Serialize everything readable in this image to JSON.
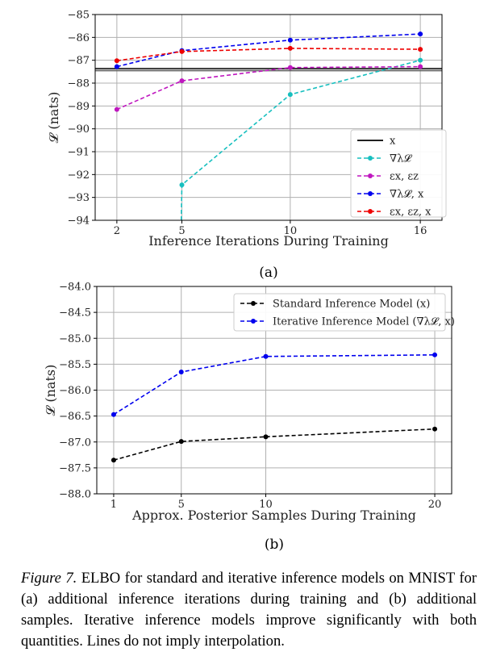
{
  "chart_data": [
    {
      "panel": "(a)",
      "type": "line",
      "xlabel": "Inference Iterations During Training",
      "ylabel": "𝓛 (nats)",
      "xlim": [
        1,
        17
      ],
      "ylim": [
        -94,
        -85
      ],
      "xticks": [
        2,
        5,
        10,
        16
      ],
      "yticks": [
        -85,
        -86,
        -87,
        -88,
        -89,
        -90,
        -91,
        -92,
        -93,
        -94
      ],
      "ytick_labels": [
        "−85",
        "−86",
        "−87",
        "−88",
        "−89",
        "−90",
        "−91",
        "−92",
        "−93",
        "−94"
      ],
      "grid": true,
      "legend_position": "lower-right",
      "hline": {
        "name": "x",
        "y": -87.4,
        "color": "#000000"
      },
      "series": [
        {
          "name": "∇λ𝓛",
          "color": "#17bfbf",
          "x": [
            5,
            10,
            16
          ],
          "y": [
            -92.45,
            -88.5,
            -87.0
          ],
          "from_below_at_x": 4.95
        },
        {
          "name": "εx, εz",
          "color": "#bf17bf",
          "x": [
            2,
            5,
            10,
            16
          ],
          "y": [
            -89.15,
            -87.9,
            -87.32,
            -87.28
          ]
        },
        {
          "name": "∇λ𝓛, x",
          "color": "#0000ee",
          "x": [
            2,
            5,
            10,
            16
          ],
          "y": [
            -87.28,
            -86.58,
            -86.12,
            -85.85
          ]
        },
        {
          "name": "εx, εz, x",
          "color": "#ee0000",
          "x": [
            2,
            5,
            10,
            16
          ],
          "y": [
            -87.02,
            -86.62,
            -86.48,
            -86.52
          ]
        }
      ]
    },
    {
      "panel": "(b)",
      "type": "line",
      "xlabel": "Approx. Posterior Samples During Training",
      "ylabel": "𝓛 (nats)",
      "xlim": [
        0,
        21
      ],
      "ylim": [
        -88.0,
        -84.0
      ],
      "xticks": [
        1,
        5,
        10,
        20
      ],
      "yticks": [
        -84.0,
        -84.5,
        -85.0,
        -85.5,
        -86.0,
        -86.5,
        -87.0,
        -87.5,
        -88.0
      ],
      "ytick_labels": [
        "−84.0",
        "−84.5",
        "−85.0",
        "−85.5",
        "−86.0",
        "−86.5",
        "−87.0",
        "−87.5",
        "−88.0"
      ],
      "grid": true,
      "legend_position": "top-right",
      "series": [
        {
          "name": "Standard Inference Model (x)",
          "color": "#000000",
          "x": [
            1,
            5,
            10,
            20
          ],
          "y": [
            -87.35,
            -86.99,
            -86.9,
            -86.75
          ]
        },
        {
          "name": "Iterative Inference Model (∇λ𝓛, x)",
          "color": "#0000ee",
          "x": [
            1,
            5,
            10,
            20
          ],
          "y": [
            -86.47,
            -85.65,
            -85.35,
            -85.32
          ]
        }
      ]
    }
  ],
  "caption": {
    "figure_label": "Figure 7.",
    "text": " ELBO for standard and iterative inference models on MNIST for (a) additional inference iterations during training and (b) additional samples. Iterative inference models improve significantly with both quantities. Lines do not imply interpolation."
  }
}
